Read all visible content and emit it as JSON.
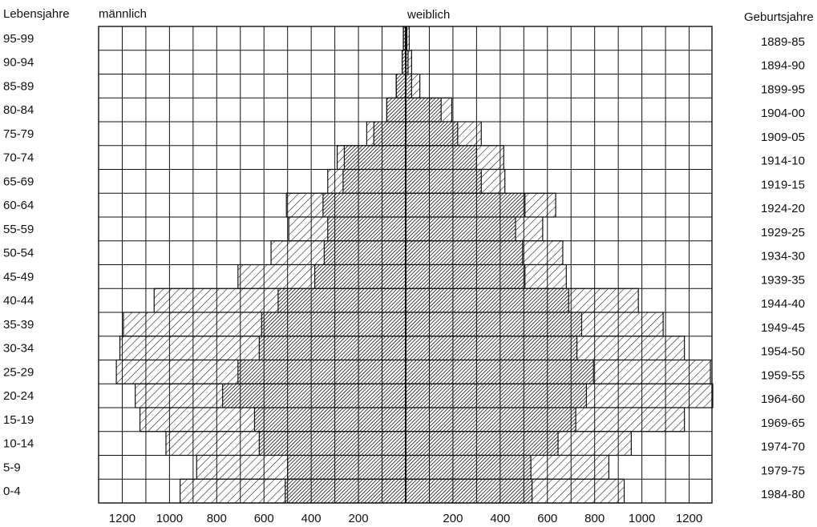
{
  "chart_data": {
    "type": "bar",
    "headers": {
      "age_axis": "Lebensjahre",
      "male": "männlich",
      "female": "weiblich",
      "birth_axis": "Geburtsjahre"
    },
    "age_groups": [
      "95-99",
      "90-94",
      "85-89",
      "80-84",
      "75-79",
      "70-74",
      "65-69",
      "60-64",
      "55-59",
      "50-54",
      "45-49",
      "40-44",
      "35-39",
      "30-34",
      "25-29",
      "20-24",
      "15-19",
      "10-14",
      "5-9",
      "0-4"
    ],
    "birth_years": [
      "1889-85",
      "1894-90",
      "1899-95",
      "1904-00",
      "1909-05",
      "1914-10",
      "1919-15",
      "1924-20",
      "1929-25",
      "1934-30",
      "1939-35",
      "1944-40",
      "1949-45",
      "1954-50",
      "1959-55",
      "1964-60",
      "1969-65",
      "1974-70",
      "1979-75",
      "1984-80"
    ],
    "x_ticks_male": [
      "1200",
      "1000",
      "800",
      "600",
      "400",
      "200"
    ],
    "x_ticks_female": [
      "200",
      "400",
      "600",
      "800",
      "1000",
      "1200"
    ],
    "xlim": [
      0,
      1300
    ],
    "unit_note": "",
    "series": [
      {
        "name": "male_inner",
        "values": [
          10,
          15,
          40,
          80,
          135,
          260,
          265,
          350,
          330,
          345,
          385,
          540,
          610,
          620,
          710,
          775,
          640,
          620,
          500,
          510
        ]
      },
      {
        "name": "male_outer",
        "values": [
          10,
          15,
          40,
          80,
          165,
          290,
          330,
          505,
          495,
          570,
          710,
          1065,
          1195,
          1210,
          1225,
          1145,
          1125,
          1015,
          885,
          955
        ]
      },
      {
        "name": "female_inner",
        "values": [
          5,
          10,
          25,
          150,
          220,
          300,
          320,
          505,
          465,
          495,
          505,
          690,
          745,
          725,
          795,
          765,
          720,
          645,
          530,
          535
        ]
      },
      {
        "name": "female_outer",
        "values": [
          15,
          25,
          60,
          195,
          320,
          415,
          420,
          635,
          580,
          665,
          680,
          985,
          1090,
          1180,
          1290,
          1300,
          1180,
          955,
          860,
          925
        ]
      }
    ]
  }
}
